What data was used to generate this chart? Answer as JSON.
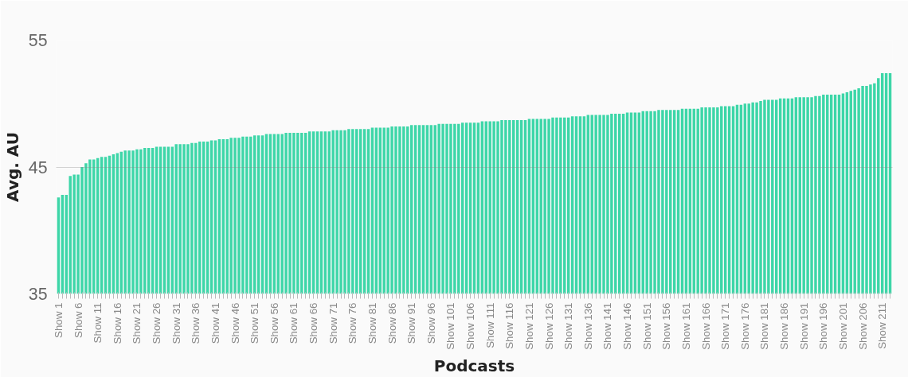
{
  "chart_data": {
    "type": "bar",
    "xlabel": "Podcasts",
    "ylabel": "Avg. AU",
    "categories": [
      "Show 1",
      null,
      null,
      null,
      null,
      "Show 6",
      null,
      null,
      null,
      null,
      "Show 11",
      null,
      null,
      null,
      null,
      "Show 16",
      null,
      null,
      null,
      null,
      "Show 21",
      null,
      null,
      null,
      null,
      "Show 26",
      null,
      null,
      null,
      null,
      "Show 31",
      null,
      null,
      null,
      null,
      "Show 36",
      null,
      null,
      null,
      null,
      "Show 41",
      null,
      null,
      null,
      null,
      "Show 46",
      null,
      null,
      null,
      null,
      "Show 51",
      null,
      null,
      null,
      null,
      "Show 56",
      null,
      null,
      null,
      null,
      "Show 61",
      null,
      null,
      null,
      null,
      "Show 66",
      null,
      null,
      null,
      null,
      "Show 71",
      null,
      null,
      null,
      null,
      "Show 76",
      null,
      null,
      null,
      null,
      "Show 81",
      null,
      null,
      null,
      null,
      "Show 86",
      null,
      null,
      null,
      null,
      "Show 91",
      null,
      null,
      null,
      null,
      "Show 96",
      null,
      null,
      null,
      null,
      "Show 101",
      null,
      null,
      null,
      null,
      "Show 106",
      null,
      null,
      null,
      null,
      "Show 111",
      null,
      null,
      null,
      null,
      "Show 116",
      null,
      null,
      null,
      null,
      "Show 121",
      null,
      null,
      null,
      null,
      "Show 126",
      null,
      null,
      null,
      null,
      "Show 131",
      null,
      null,
      null,
      null,
      "Show 136",
      null,
      null,
      null,
      null,
      "Show 141",
      null,
      null,
      null,
      null,
      "Show 146",
      null,
      null,
      null,
      null,
      "Show 151",
      null,
      null,
      null,
      null,
      "Show 156",
      null,
      null,
      null,
      null,
      "Show 161",
      null,
      null,
      null,
      null,
      "Show 166",
      null,
      null,
      null,
      null,
      "Show 171",
      null,
      null,
      null,
      null,
      "Show 176",
      null,
      null,
      null,
      null,
      "Show 181",
      null,
      null,
      null,
      null,
      "Show 186",
      null,
      null,
      null,
      null,
      "Show 191",
      null,
      null,
      null,
      null,
      "Show 196",
      null,
      null,
      null,
      null,
      "Show 201",
      null,
      null,
      null,
      null,
      "Show 206",
      null,
      null,
      null,
      null,
      "Show 211",
      null,
      null
    ],
    "values": [
      42.6,
      42.8,
      42.8,
      44.3,
      44.4,
      44.4,
      45.0,
      45.3,
      45.6,
      45.6,
      45.7,
      45.8,
      45.8,
      45.9,
      46.0,
      46.1,
      46.2,
      46.3,
      46.3,
      46.3,
      46.4,
      46.4,
      46.5,
      46.5,
      46.5,
      46.6,
      46.6,
      46.6,
      46.6,
      46.6,
      46.8,
      46.8,
      46.8,
      46.8,
      46.9,
      46.9,
      47.0,
      47.0,
      47.0,
      47.1,
      47.1,
      47.2,
      47.2,
      47.2,
      47.3,
      47.3,
      47.3,
      47.4,
      47.4,
      47.4,
      47.5,
      47.5,
      47.5,
      47.6,
      47.6,
      47.6,
      47.6,
      47.6,
      47.7,
      47.7,
      47.7,
      47.7,
      47.7,
      47.7,
      47.8,
      47.8,
      47.8,
      47.8,
      47.8,
      47.8,
      47.9,
      47.9,
      47.9,
      47.9,
      48.0,
      48.0,
      48.0,
      48.0,
      48.0,
      48.0,
      48.1,
      48.1,
      48.1,
      48.1,
      48.1,
      48.2,
      48.2,
      48.2,
      48.2,
      48.2,
      48.3,
      48.3,
      48.3,
      48.3,
      48.3,
      48.3,
      48.3,
      48.4,
      48.4,
      48.4,
      48.4,
      48.4,
      48.4,
      48.5,
      48.5,
      48.5,
      48.5,
      48.5,
      48.6,
      48.6,
      48.6,
      48.6,
      48.6,
      48.7,
      48.7,
      48.7,
      48.7,
      48.7,
      48.7,
      48.7,
      48.8,
      48.8,
      48.8,
      48.8,
      48.8,
      48.8,
      48.9,
      48.9,
      48.9,
      48.9,
      48.9,
      49.0,
      49.0,
      49.0,
      49.0,
      49.1,
      49.1,
      49.1,
      49.1,
      49.1,
      49.1,
      49.2,
      49.2,
      49.2,
      49.2,
      49.3,
      49.3,
      49.3,
      49.3,
      49.4,
      49.4,
      49.4,
      49.4,
      49.5,
      49.5,
      49.5,
      49.5,
      49.5,
      49.5,
      49.6,
      49.6,
      49.6,
      49.6,
      49.6,
      49.7,
      49.7,
      49.7,
      49.7,
      49.7,
      49.8,
      49.8,
      49.8,
      49.8,
      49.9,
      49.9,
      50.0,
      50.0,
      50.1,
      50.1,
      50.2,
      50.3,
      50.3,
      50.3,
      50.3,
      50.4,
      50.4,
      50.4,
      50.4,
      50.5,
      50.5,
      50.5,
      50.5,
      50.5,
      50.6,
      50.6,
      50.7,
      50.7,
      50.7,
      50.7,
      50.7,
      50.8,
      50.9,
      51.0,
      51.1,
      51.2,
      51.4,
      51.4,
      51.5,
      51.6,
      52.0,
      52.4,
      52.4,
      52.4
    ],
    "color": "#3dd6a8",
    "ylim": [
      35,
      55
    ],
    "yticks": [
      35,
      45,
      55
    ],
    "grid": "y"
  }
}
